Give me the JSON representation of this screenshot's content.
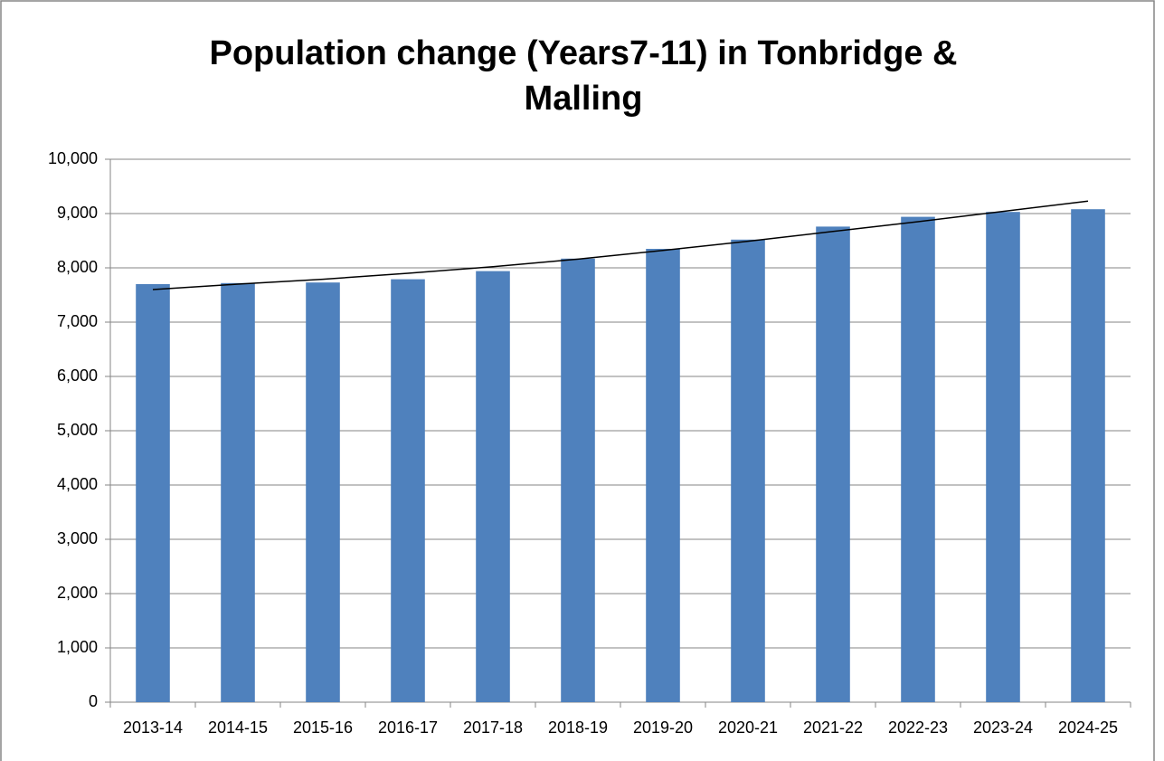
{
  "chart_data": {
    "type": "bar",
    "title": "Population change (Years7-11) in Tonbridge & Malling",
    "categories": [
      "2013-14",
      "2014-15",
      "2015-16",
      "2016-17",
      "2017-18",
      "2018-19",
      "2019-20",
      "2020-21",
      "2021-22",
      "2022-23",
      "2023-24",
      "2024-25"
    ],
    "series": [
      {
        "type": "bar",
        "color": "#4f81bd",
        "values": [
          7700,
          7720,
          7730,
          7790,
          7940,
          8170,
          8350,
          8520,
          8760,
          8940,
          9030,
          9080
        ]
      },
      {
        "type": "line",
        "color": "#000000",
        "values": [
          7600,
          7700,
          7790,
          7900,
          8020,
          8160,
          8320,
          8490,
          8670,
          8850,
          9040,
          9230
        ]
      }
    ],
    "ylim": [
      0,
      10000
    ],
    "yticks": [
      0,
      {
        "value": 1000,
        "label": "1,000"
      },
      {
        "value": 2000,
        "label": "2,000"
      },
      {
        "value": 3000,
        "label": "3,000"
      },
      {
        "value": 4000,
        "label": "4,000"
      },
      {
        "value": 5000,
        "label": "5,000"
      },
      {
        "value": 6000,
        "label": "6,000"
      },
      {
        "value": 7000,
        "label": "7,000"
      },
      {
        "value": 8000,
        "label": "8,000"
      },
      {
        "value": 9000,
        "label": "9,000"
      },
      {
        "value": 10000,
        "label": "10,000"
      }
    ],
    "grid": true
  }
}
